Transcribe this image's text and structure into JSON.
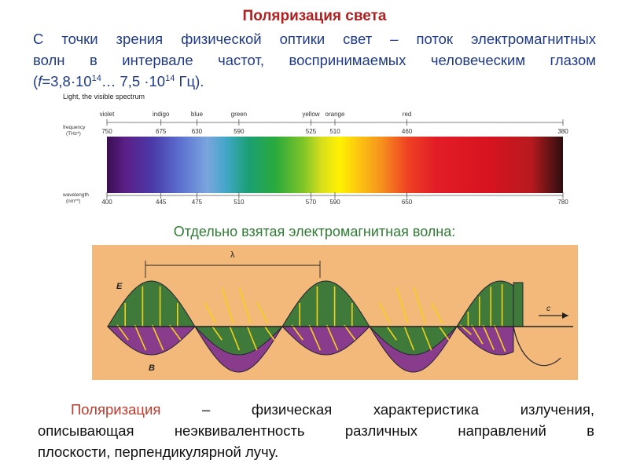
{
  "title": "Поляризация света",
  "intro": {
    "line1": "С точки зрения физической оптики свет – поток электромагнитных",
    "line2": "волн в интервале частот, воспринимаемых человеческим глазом",
    "formula_prefix": "(",
    "f_symbol": "f",
    "formula_eq": "=3,8",
    "dot1": "·",
    "base1": "10",
    "exp1": "14",
    "mid": "… 7,5 ",
    "dot2": "·",
    "base2": "10",
    "exp2": "14",
    "unit": " Гц)."
  },
  "spectrum": {
    "caption": "Light, the visible spectrum",
    "frequency_label_1": "frequency",
    "frequency_label_2": "(THz*)",
    "wavelength_label_1": "wavelength",
    "wavelength_label_2": "(nm**)",
    "colors": [
      {
        "name": "violet",
        "frequency": "750",
        "wavelength": "400",
        "nm": 400
      },
      {
        "name": "indigo",
        "frequency": "675",
        "wavelength": "445",
        "nm": 445
      },
      {
        "name": "blue",
        "frequency": "630",
        "wavelength": "475",
        "nm": 475
      },
      {
        "name": "green",
        "frequency": "590",
        "wavelength": "510",
        "nm": 510
      },
      {
        "name": "yellow",
        "frequency": "525",
        "wavelength": "570",
        "nm": 570
      },
      {
        "name": "orange",
        "frequency": "510",
        "wavelength": "590",
        "nm": 590
      },
      {
        "name": "red",
        "frequency": "460",
        "wavelength": "650",
        "nm": 650
      },
      {
        "name": "",
        "frequency": "380",
        "wavelength": "780",
        "nm": 780
      }
    ],
    "range_nm": [
      400,
      780
    ]
  },
  "subtitle": "Отдельно взятая электромагнитная волна:",
  "wave": {
    "label_lambda": "λ",
    "label_E": "E",
    "label_B": "B",
    "label_c": "c",
    "background": "#f3b97a",
    "e_color": "#3f7a3a",
    "b_color": "#8a3c8c",
    "arrow_color": "#f2d21a"
  },
  "polarization": {
    "term": "Поляризация",
    "line1_rest": "– физическая характеристика излучения,",
    "line2": "описывающая неэквивалентность различных направлений в",
    "line3": "плоскости, перпендикулярной лучу."
  }
}
